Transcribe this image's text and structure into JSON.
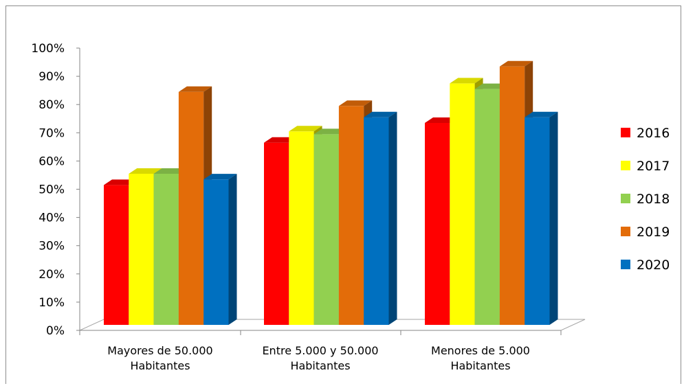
{
  "chart_data": {
    "type": "bar",
    "categories": [
      [
        "Mayores de 50.000",
        "Habitantes"
      ],
      [
        "Entre 5.000 y 50.000",
        "Habitantes"
      ],
      [
        "Menores de 5.000",
        "Habitantes"
      ]
    ],
    "series": [
      {
        "name": "2016",
        "color": "#ff0000",
        "values": [
          51,
          66,
          73
        ]
      },
      {
        "name": "2017",
        "color": "#ffff00",
        "values": [
          55,
          70,
          87
        ]
      },
      {
        "name": "2018",
        "color": "#92d050",
        "values": [
          55,
          69,
          85
        ]
      },
      {
        "name": "2019",
        "color": "#e36c09",
        "values": [
          84,
          79,
          93
        ]
      },
      {
        "name": "2020",
        "color": "#0070c0",
        "values": [
          53,
          75,
          75
        ]
      }
    ],
    "ylim": [
      0,
      100
    ],
    "yticks": [
      "0%",
      "10%",
      "20%",
      "30%",
      "40%",
      "50%",
      "60%",
      "70%",
      "80%",
      "90%",
      "100%"
    ],
    "legend_position": "right",
    "grid": false,
    "style": "3d-clustered-column"
  }
}
